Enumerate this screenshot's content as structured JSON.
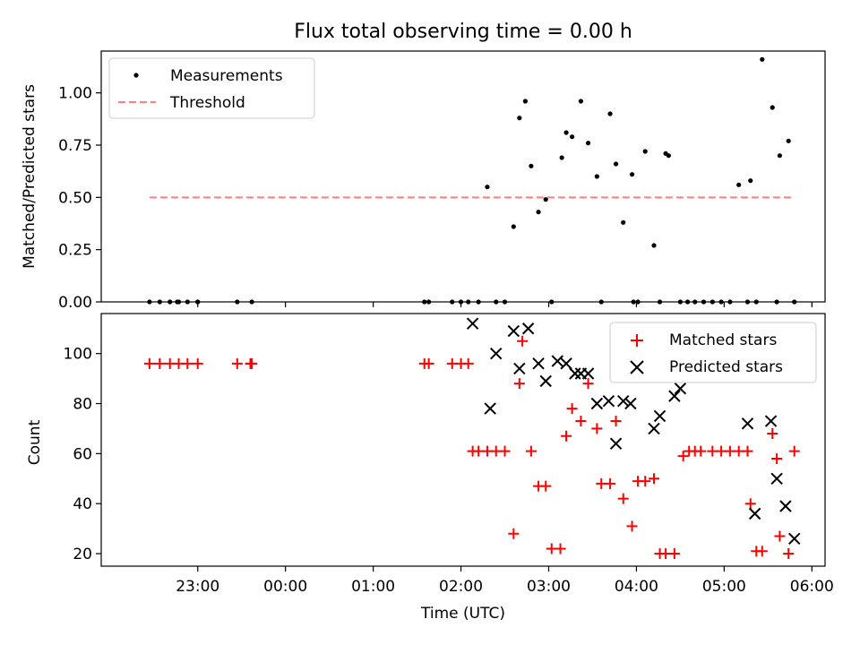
{
  "title": "Flux total observing time = 0.00 h",
  "colors": {
    "measurement": "#000000",
    "threshold": "#ff7f7f",
    "matched": "#ff0000",
    "predicted": "#000000"
  },
  "chart_data": [
    {
      "type": "scatter",
      "panel": "top",
      "ylabel": "Matched/Predicted stars",
      "ylim": [
        0,
        1.2
      ],
      "yticks": [
        0.0,
        0.25,
        0.5,
        0.75,
        1.0
      ],
      "ytick_labels": [
        "0.00",
        "0.25",
        "0.50",
        "0.75",
        "1.00"
      ],
      "legend": {
        "placement": "upper left",
        "entries": [
          "Measurements",
          "Threshold"
        ]
      },
      "threshold": {
        "name": "Threshold",
        "y": 0.5,
        "x_range": [
          "22:27",
          "05:48"
        ]
      },
      "series": [
        {
          "name": "Measurements",
          "x": [
            "22:27",
            "22:34",
            "22:41",
            "22:47",
            "22:53",
            "23:00",
            "22:46",
            "23:00",
            "23:27",
            "23:37",
            "01:35",
            "01:38",
            "01:54",
            "02:00",
            "02:05",
            "02:12",
            "02:18",
            "02:24",
            "02:30",
            "02:36",
            "02:40",
            "02:44",
            "02:48",
            "02:53",
            "02:58",
            "03:02",
            "03:09",
            "03:12",
            "03:16",
            "03:22",
            "03:27",
            "03:33",
            "03:36",
            "03:42",
            "03:46",
            "03:51",
            "03:57",
            "03:58",
            "04:01",
            "04:06",
            "04:12",
            "04:16",
            "04:20",
            "04:22",
            "04:30",
            "04:35",
            "04:40",
            "04:46",
            "04:52",
            "04:58",
            "05:04",
            "05:10",
            "05:16",
            "05:18",
            "05:22",
            "05:26",
            "05:33",
            "05:36",
            "05:38",
            "05:44",
            "05:48"
          ],
          "y": [
            0,
            0,
            0,
            0,
            0,
            0,
            0,
            0,
            0,
            0,
            0,
            0,
            0,
            0,
            0,
            0,
            0.55,
            0,
            0,
            0.36,
            0.88,
            0.96,
            0.65,
            0.43,
            0.49,
            0,
            0.69,
            0.81,
            0.79,
            0.96,
            0.76,
            0.6,
            0,
            0.9,
            0.66,
            0.38,
            0.61,
            0,
            0,
            0.72,
            0.27,
            0,
            0.71,
            0.7,
            0,
            0,
            0,
            0,
            0,
            0,
            0,
            0.56,
            0,
            0.58,
            0,
            1.16,
            0.93,
            0,
            0.7,
            0.77,
            0
          ]
        }
      ]
    },
    {
      "type": "scatter",
      "panel": "bottom",
      "xlabel": "Time (UTC)",
      "ylabel": "Count",
      "ylim": [
        15,
        116
      ],
      "yticks": [
        20,
        40,
        60,
        80,
        100
      ],
      "xticks": [
        "23:00",
        "00:00",
        "01:00",
        "02:00",
        "03:00",
        "04:00",
        "05:00",
        "06:00"
      ],
      "legend": {
        "placement": "upper right",
        "entries": [
          "Matched stars",
          "Predicted stars"
        ]
      },
      "series": [
        {
          "name": "Matched stars",
          "marker": "+",
          "x": [
            "22:27",
            "22:34",
            "22:41",
            "22:47",
            "22:53",
            "23:00",
            "23:27",
            "23:36",
            "23:37",
            "01:35",
            "01:38",
            "01:54",
            "02:00",
            "02:05",
            "02:08",
            "02:12",
            "02:18",
            "02:24",
            "02:30",
            "02:36",
            "02:40",
            "02:42",
            "02:48",
            "02:53",
            "02:58",
            "03:02",
            "03:08",
            "03:12",
            "03:16",
            "03:22",
            "03:27",
            "03:33",
            "03:36",
            "03:42",
            "03:46",
            "03:51",
            "03:57",
            "04:01",
            "04:06",
            "04:12",
            "04:16",
            "04:20",
            "04:26",
            "04:32",
            "04:36",
            "04:40",
            "04:44",
            "04:52",
            "04:58",
            "05:04",
            "05:10",
            "05:16",
            "05:18",
            "05:22",
            "05:26",
            "05:33",
            "05:36",
            "05:38",
            "05:44",
            "05:48"
          ],
          "y": [
            96,
            96,
            96,
            96,
            96,
            96,
            96,
            96,
            96,
            96,
            96,
            96,
            96,
            96,
            61,
            61,
            61,
            61,
            61,
            28,
            88,
            105,
            61,
            47,
            47,
            22,
            22,
            67,
            78,
            73,
            88,
            70,
            48,
            48,
            73,
            42,
            31,
            49,
            49,
            50,
            20,
            20,
            20,
            59,
            61,
            61,
            61,
            61,
            61,
            61,
            61,
            61,
            40,
            21,
            21,
            68,
            58,
            27,
            20,
            61
          ]
        },
        {
          "name": "Predicted stars",
          "marker": "x",
          "x": [
            "02:08",
            "02:20",
            "02:24",
            "02:36",
            "02:40",
            "02:46",
            "02:53",
            "02:58",
            "03:06",
            "03:12",
            "03:18",
            "03:22",
            "03:27",
            "03:33",
            "03:41",
            "03:46",
            "03:51",
            "03:56",
            "04:12",
            "04:16",
            "04:26",
            "04:30",
            "05:16",
            "05:21",
            "05:32",
            "05:36",
            "05:42",
            "05:48"
          ],
          "y": [
            112,
            78,
            100,
            109,
            94,
            110,
            96,
            89,
            97,
            96,
            92,
            92,
            92,
            80,
            81,
            64,
            81,
            80,
            70,
            75,
            83,
            86,
            72,
            36,
            73,
            50,
            39,
            26
          ]
        }
      ]
    }
  ]
}
